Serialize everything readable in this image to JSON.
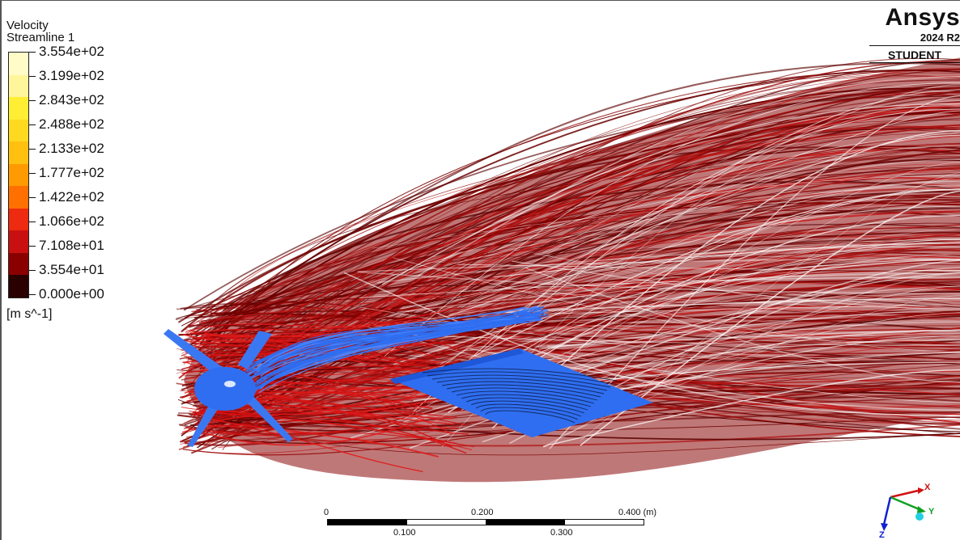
{
  "legend": {
    "title": "Velocity",
    "subtitle": "Streamline 1",
    "units": "[m s^-1]",
    "ticks": [
      "3.554e+02",
      "3.199e+02",
      "2.843e+02",
      "2.488e+02",
      "2.133e+02",
      "1.777e+02",
      "1.422e+02",
      "1.066e+02",
      "7.108e+01",
      "3.554e+01",
      "0.000e+00"
    ],
    "colors": [
      "#fffcc8",
      "#fff59a",
      "#ffee33",
      "#ffd820",
      "#ffc010",
      "#ff9a00",
      "#ff7000",
      "#ee2a10",
      "#c81010",
      "#8a0000",
      "#2a0000"
    ]
  },
  "brand": {
    "name": "Ansys",
    "version": "2024 R2",
    "license": "STUDENT"
  },
  "scale": {
    "top_labels": [
      "0",
      "0.200",
      "0.400 (m)"
    ],
    "bottom_labels": [
      "0.100",
      "0.300"
    ]
  },
  "axes": {
    "x": "X",
    "y": "Y",
    "z": "Z",
    "x_color": "#d01010",
    "y_color": "#10a020",
    "z_color": "#1020d0"
  },
  "model": {
    "body_color": "#2f6ef0",
    "streamline_color": "#7a0000"
  }
}
